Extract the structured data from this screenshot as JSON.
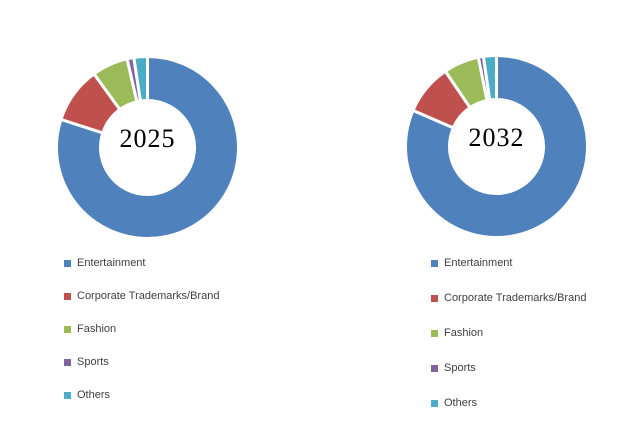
{
  "figure": {
    "background": "#ffffff",
    "left_title": "2025",
    "right_title": "2032"
  },
  "chart_data": [
    {
      "type": "pie",
      "subtype": "donut",
      "title": "2025",
      "categories": [
        "Entertainment",
        "Corporate Trademarks/Brand",
        "Fashion",
        "Sports",
        "Others"
      ],
      "values": [
        80,
        10,
        6.4,
        1.2,
        2.4
      ],
      "unit": "percent_estimated",
      "colors": [
        "#4F81BD",
        "#C0504D",
        "#9BBB59",
        "#8064A2",
        "#4BACC6"
      ],
      "start_angle_deg": 0,
      "direction": "clockwise",
      "hole_ratio": 0.55,
      "slice_border_color": "#ffffff",
      "legend_position": "below",
      "center_label": "2025"
    },
    {
      "type": "pie",
      "subtype": "donut",
      "title": "2032",
      "categories": [
        "Entertainment",
        "Corporate Trademarks/Brand",
        "Fashion",
        "Sports",
        "Others"
      ],
      "values": [
        81.5,
        9,
        6.3,
        0.9,
        2.3
      ],
      "unit": "percent_estimated",
      "colors": [
        "#4F81BD",
        "#C0504D",
        "#9BBB59",
        "#8064A2",
        "#4BACC6"
      ],
      "start_angle_deg": 0,
      "direction": "clockwise",
      "hole_ratio": 0.55,
      "slice_border_color": "#ffffff",
      "legend_position": "below",
      "center_label": "2032"
    }
  ]
}
